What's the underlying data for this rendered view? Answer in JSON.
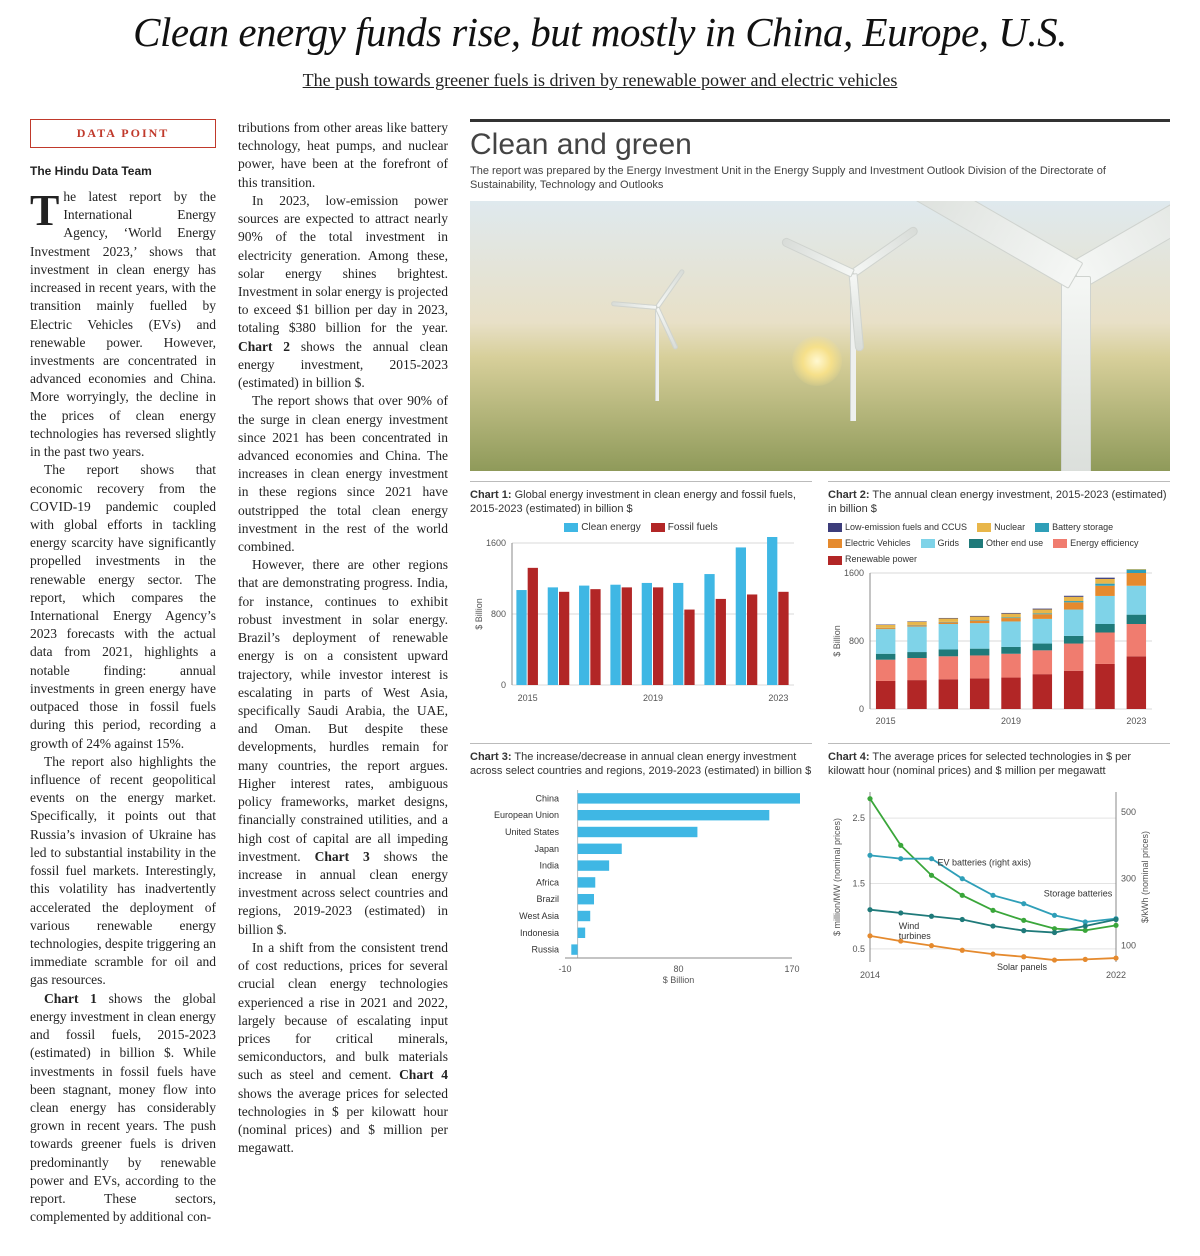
{
  "headline": "Clean energy funds rise, but mostly in China, Europe, U.S.",
  "subhead": "The push towards greener fuels is driven by renewable power and electric vehicles",
  "data_point_label": "DATA POINT",
  "byline": "The Hindu Data Team",
  "body_col1": {
    "p1": "The latest report by the International Energy Agency, ‘World Energy Investment 2023,’ shows that investment in clean energy has increased in recent years, with the transition mainly fuelled by Electric Vehicles (EVs) and renewable power. However, investments are concentrated in advanced economies and China. More worryingly, the decline in the prices of clean energy technologies has reversed slightly in the past two years.",
    "p2": "The report shows that economic recovery from the COVID-19 pandemic coupled with global efforts in tackling energy scarcity have significantly propelled investments in the renewable energy sector. The report, which compares the International Energy Agency’s 2023 forecasts with the actual data from 2021, highlights a notable finding: annual investments in green energy have outpaced those in fossil fuels during this period, recording a growth of 24% against 15%.",
    "p3": "The report also highlights the influence of recent geopolitical events on the energy market. Specifically, it points out that Russia’s invasion of Ukraine has led to substantial instability in the fossil fuel markets. Interestingly, this volatility has inadvertently accelerated the deployment of various renewable energy technologies, despite triggering an immediate scramble for oil and gas resources.",
    "p4_a": "Chart 1 ",
    "p4_b": "shows the global energy investment in clean energy and fossil fuels, 2015-2023 (estimated) in billion $. While investments in fossil fuels have been stagnant, money flow into clean energy has considerably grown in recent years. The push towards greener fuels is driven predominantly by renewable power and EVs, according to the report. These sectors, complemented by additional con-"
  },
  "body_col2": {
    "p1": "tributions from other areas like battery technology, heat pumps, and nuclear power, have been at the forefront of this transition.",
    "p2_a": "In 2023, low-emission power sources are expected to attract nearly 90% of the total investment in electricity generation. Among these, solar energy shines brightest. Investment in solar energy is projected to exceed $1 billion per day in 2023, totaling $380 billion for the year. ",
    "p2_b": "Chart 2 ",
    "p2_c": "shows the annual clean energy investment, 2015-2023 (estimated) in billion $.",
    "p3": "The report shows that over 90% of the surge in clean energy investment since 2021 has been concentrated in advanced economies and China. The increases in clean energy investment in these regions since 2021 have outstripped the total clean energy investment in the rest of the world combined.",
    "p4_a": "However, there are other regions that are demonstrating progress. India, for instance, continues to exhibit robust investment in solar energy. Brazil’s deployment of renewable energy is on a consistent upward trajectory, while investor interest is escalating in parts of West Asia, specifically Saudi Arabia, the UAE, and Oman. But despite these developments, hurdles remain for many countries, the report argues. Higher interest rates, ambiguous policy frameworks, market designs, financially constrained utilities, and a high cost of capital are all impeding investment. ",
    "p4_b": "Chart 3 ",
    "p4_c": "shows the increase in annual clean energy investment across select countries and regions, 2019-2023 (estimated) in billion $.",
    "p5_a": "In a shift from the consistent trend of cost reductions, prices for several crucial clean energy technologies experienced a rise in 2021 and 2022, largely because of escalating input prices for critical minerals, semiconductors, and bulk materials such as steel and cement. ",
    "p5_b": "Chart 4 ",
    "p5_c": "shows the average prices for selected technologies in $ per kilowatt hour (nominal prices) and $ million per megawatt."
  },
  "panel": {
    "title": "Clean and green",
    "desc": "The report was prepared by the Energy Investment Unit in the Energy Supply and Investment Outlook Division of the Directorate of Sustainability, Technology and Outlooks"
  },
  "chart1": {
    "caption_bold": "Chart 1:",
    "caption": " Global energy investment in clean energy and fossil fuels, 2015-2023 (estimated) in billion $",
    "type": "grouped-bar",
    "years": [
      "2015",
      "2016",
      "2017",
      "2018",
      "2019",
      "2020",
      "2021",
      "2022",
      "2023"
    ],
    "series": [
      {
        "name": "Clean energy",
        "color": "#3fb7e4",
        "values": [
          1070,
          1100,
          1120,
          1130,
          1150,
          1150,
          1250,
          1550,
          1720
        ]
      },
      {
        "name": "Fossil fuels",
        "color": "#b22626",
        "values": [
          1320,
          1050,
          1080,
          1100,
          1100,
          850,
          970,
          1020,
          1050
        ]
      }
    ],
    "ymax": 1600,
    "ytick_step": 800,
    "xticks_shown": [
      "2015",
      "2019",
      "2023"
    ],
    "ylabel": "$ Billion",
    "grid_color": "#d9d9d9",
    "bar_group_gap": 0.28
  },
  "chart2": {
    "caption_bold": "Chart 2:",
    "caption": " The annual clean energy investment, 2015-2023 (estimated) in billion $",
    "type": "stacked-bar",
    "years": [
      "2015",
      "2016",
      "2017",
      "2018",
      "2019",
      "2020",
      "2021",
      "2022",
      "2023"
    ],
    "series": [
      {
        "name": "Renewable power",
        "color": "#b22626",
        "values": [
          330,
          340,
          350,
          360,
          370,
          410,
          450,
          530,
          620
        ]
      },
      {
        "name": "Energy efficiency",
        "color": "#f07c6f",
        "values": [
          250,
          260,
          270,
          270,
          280,
          280,
          320,
          370,
          380
        ]
      },
      {
        "name": "Other end use",
        "color": "#1f7a7a",
        "values": [
          70,
          70,
          80,
          80,
          80,
          80,
          90,
          100,
          110
        ]
      },
      {
        "name": "Grids",
        "color": "#7fd3e8",
        "values": [
          290,
          300,
          300,
          300,
          300,
          290,
          310,
          330,
          340
        ]
      },
      {
        "name": "Electric Vehicles",
        "color": "#e58a2e",
        "values": [
          12,
          15,
          20,
          30,
          40,
          55,
          85,
          120,
          150
        ]
      },
      {
        "name": "Battery storage",
        "color": "#2f9fb8",
        "values": [
          3,
          4,
          5,
          6,
          8,
          10,
          15,
          25,
          40
        ]
      },
      {
        "name": "Nuclear",
        "color": "#e8b64a",
        "values": [
          35,
          38,
          40,
          42,
          44,
          46,
          50,
          55,
          60
        ]
      },
      {
        "name": "Low-emission fuels and CCUS",
        "color": "#3c3c7a",
        "values": [
          5,
          5,
          6,
          7,
          8,
          10,
          12,
          15,
          20
        ]
      }
    ],
    "legend_order": [
      "Low-emission fuels and CCUS",
      "Nuclear",
      "Battery storage",
      "Electric Vehicles",
      "Grids",
      "Other end use",
      "Energy efficiency",
      "Renewable power"
    ],
    "ymax": 1600,
    "ytick_step": 800,
    "xticks_shown": [
      "2015",
      "2019",
      "2023"
    ],
    "ylabel": "$ Billion"
  },
  "chart3": {
    "caption_bold": "Chart 3:",
    "caption": " The increase/decrease in annual clean energy investment across select countries and regions, 2019-2023 (estimated) in billion $",
    "type": "hbar",
    "categories": [
      "China",
      "European Union",
      "United States",
      "Japan",
      "India",
      "Africa",
      "Brazil",
      "West Asia",
      "Indonesia",
      "Russia"
    ],
    "values": [
      180,
      152,
      95,
      35,
      25,
      14,
      13,
      10,
      6,
      -5
    ],
    "bar_color": "#3fb7e4",
    "xmin": -10,
    "xmax": 170,
    "xticks": [
      -10,
      80,
      170
    ],
    "xlabel": "$ Billion"
  },
  "chart4": {
    "caption_bold": "Chart 4:",
    "caption": " The average prices for selected technologies in $ per kilowatt hour (nominal prices) and $ million per megawatt",
    "type": "line",
    "years": [
      "2014",
      "2015",
      "2016",
      "2017",
      "2018",
      "2019",
      "2020",
      "2021",
      "2022"
    ],
    "left_axis": {
      "label": "$ million/MW (nominal prices)",
      "min": 0.3,
      "max": 2.9,
      "ticks": [
        0.5,
        1.5,
        2.5
      ]
    },
    "right_axis": {
      "label": "$/kWh (nominal prices)",
      "min": 50,
      "max": 560,
      "ticks": [
        100,
        300,
        500
      ]
    },
    "series": [
      {
        "name": "EV batteries (right axis)",
        "axis": "right",
        "color": "#3aa63a",
        "values": [
          540,
          400,
          310,
          250,
          205,
          175,
          150,
          145,
          160
        ]
      },
      {
        "name": "Storage batteries",
        "axis": "right",
        "color": "#2f9fb8",
        "values": [
          370,
          360,
          360,
          300,
          250,
          225,
          190,
          170,
          180
        ]
      },
      {
        "name": "Wind turbines",
        "axis": "left",
        "color": "#1f7a7a",
        "values": [
          1.1,
          1.05,
          1.0,
          0.95,
          0.85,
          0.78,
          0.75,
          0.85,
          0.95
        ]
      },
      {
        "name": "Solar panels",
        "axis": "left",
        "color": "#e58a2e",
        "values": [
          0.7,
          0.62,
          0.55,
          0.48,
          0.42,
          0.38,
          0.33,
          0.34,
          0.36
        ]
      }
    ],
    "annotations": {
      "ev": "EV batteries (right axis)",
      "storage": "Storage batteries",
      "wind": "Wind\nturbines",
      "solar": "Solar panels"
    },
    "xticks_shown": [
      "2014",
      "2022"
    ],
    "marker_radius": 2.6
  },
  "colors": {
    "accent_red": "#c0392b",
    "text": "#222222"
  }
}
